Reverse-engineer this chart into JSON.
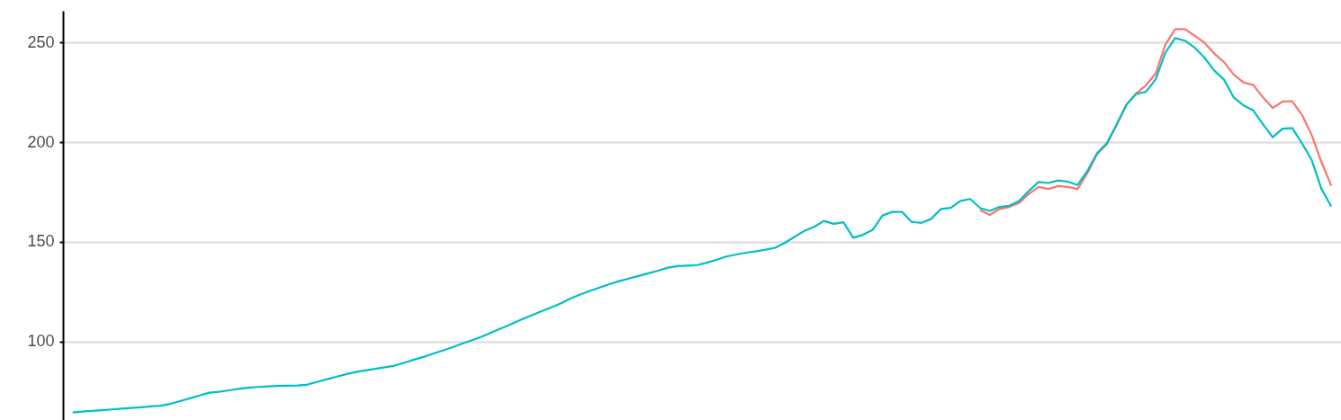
{
  "chart_data": {
    "type": "line",
    "categories": [
      null,
      null,
      null,
      null,
      null,
      null,
      null,
      null,
      null,
      null,
      null,
      null,
      null,
      null,
      null,
      null,
      null,
      null,
      null,
      null,
      null,
      null,
      null,
      null,
      null,
      null,
      null,
      null,
      null,
      null,
      null,
      null,
      null,
      null,
      null,
      null,
      null,
      null,
      null,
      null,
      null,
      null,
      null,
      null,
      null,
      null,
      null,
      null,
      null,
      null,
      null,
      null,
      null,
      null,
      null,
      null,
      null,
      null,
      null,
      null,
      null,
      null,
      null,
      null,
      null,
      null,
      null,
      null,
      null,
      null,
      null,
      null,
      null,
      null,
      null,
      null,
      null,
      null,
      null,
      null,
      null,
      null,
      null,
      null,
      null,
      null,
      null,
      null,
      null,
      null,
      null,
      null,
      null,
      null,
      null,
      null,
      null,
      null,
      null,
      null,
      null,
      null,
      null,
      null,
      null,
      null,
      null,
      null,
      null,
      null,
      null,
      null,
      null,
      null,
      null,
      null,
      null,
      null,
      null,
      null,
      null,
      null,
      null,
      null,
      null,
      null,
      null,
      null,
      null,
      null
    ],
    "series": [
      {
        "color": "#f8766d",
        "values": [
          null,
          null,
          null,
          null,
          null,
          null,
          null,
          null,
          null,
          null,
          null,
          null,
          null,
          null,
          null,
          null,
          null,
          null,
          null,
          null,
          null,
          null,
          null,
          null,
          null,
          null,
          null,
          null,
          null,
          null,
          null,
          null,
          null,
          null,
          null,
          null,
          null,
          null,
          null,
          null,
          null,
          null,
          null,
          null,
          null,
          null,
          null,
          null,
          null,
          null,
          null,
          null,
          null,
          null,
          null,
          null,
          null,
          null,
          null,
          null,
          null,
          null,
          null,
          null,
          null,
          null,
          null,
          null,
          null,
          null,
          null,
          null,
          null,
          null,
          null,
          null,
          null,
          null,
          null,
          null,
          null,
          null,
          null,
          null,
          null,
          null,
          null,
          null,
          null,
          null,
          null,
          null,
          null,
          166,
          163.5,
          166.5,
          167.5,
          169.5,
          174,
          177.5,
          176.5,
          178,
          177.5,
          176.5,
          184.5,
          194,
          199,
          208.5,
          218.8,
          224.5,
          228.5,
          234.5,
          249,
          256.8,
          256.8,
          253.5,
          250,
          244.5,
          240.3,
          234,
          230,
          228.8,
          222.5,
          217.2,
          220.4,
          220.6,
          213.8,
          203.5,
          190,
          178.2
        ]
      },
      {
        "color": "#00bfc4",
        "values": [
          64.3,
          64.7,
          65.1,
          65.4,
          65.8,
          66.2,
          66.5,
          66.9,
          67.3,
          67.7,
          68.6,
          70,
          71.4,
          72.8,
          74.2,
          74.7,
          75.4,
          76.1,
          76.7,
          77.1,
          77.4,
          77.6,
          77.7,
          77.8,
          78.2,
          79.6,
          80.9,
          82.2,
          83.5,
          84.6,
          85.4,
          86.2,
          87,
          87.8,
          89.3,
          90.8,
          92.3,
          93.9,
          95.5,
          97.2,
          99,
          100.7,
          102.5,
          104.6,
          106.7,
          108.8,
          111,
          113,
          115,
          117,
          119,
          121.5,
          123.5,
          125.3,
          127,
          128.7,
          130.2,
          131.5,
          132.8,
          134.2,
          135.5,
          137,
          137.8,
          138,
          138.3,
          139.5,
          141,
          142.6,
          143.6,
          144.5,
          145.2,
          146,
          147,
          149.5,
          152.5,
          155.5,
          157.5,
          160.5,
          159,
          159.8,
          152,
          153.5,
          156,
          163.2,
          165,
          165,
          160,
          159.5,
          161.5,
          166.5,
          167,
          170.5,
          171.5,
          167,
          165.5,
          167.5,
          168.1,
          170.5,
          175.5,
          180,
          179.5,
          180.8,
          180.2,
          178.5,
          185.5,
          194.5,
          199.5,
          209,
          218.8,
          224.2,
          225.3,
          231.5,
          245,
          252.3,
          251,
          247.5,
          242.5,
          236,
          231.5,
          222.5,
          218.5,
          216,
          209,
          202.5,
          206.8,
          207.1,
          199.5,
          191,
          176.5,
          167.8
        ]
      }
    ],
    "ylim": [
      60.5,
      266
    ],
    "yticks": [
      100,
      150,
      200,
      250
    ],
    "grid": "y",
    "tick_labels": "y"
  }
}
